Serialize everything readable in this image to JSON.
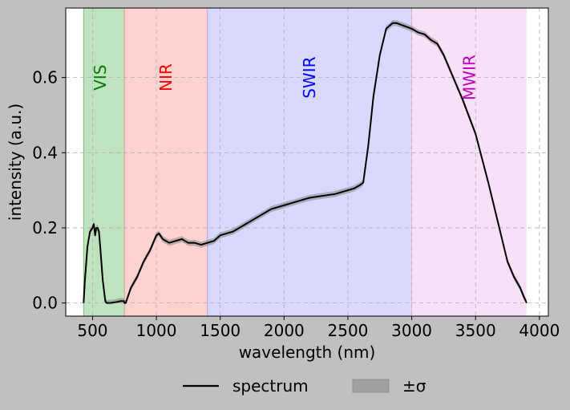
{
  "chart_data": {
    "type": "line",
    "title": "",
    "xlabel": "wavelength (nm)",
    "ylabel": "intensity (a.u.)",
    "xlim": [
      290,
      4070
    ],
    "ylim": [
      -0.035,
      0.785
    ],
    "xticks": [
      500,
      1000,
      1500,
      2000,
      2500,
      3000,
      3500,
      4000
    ],
    "yticks": [
      0.0,
      0.2,
      0.4,
      0.6
    ],
    "xtick_labels": [
      "500",
      "1000",
      "1500",
      "2000",
      "2500",
      "3000",
      "3500",
      "4000"
    ],
    "ytick_labels": [
      "0.0",
      "0.2",
      "0.4",
      "0.6"
    ],
    "grid": true,
    "legend_placement": "bottom-center",
    "bands": [
      {
        "label": "VIS",
        "x0": 430,
        "x1": 750,
        "color": "#2ca02c",
        "text_color": "#008000",
        "label_x": 560
      },
      {
        "label": "NIR",
        "x0": 750,
        "x1": 1400,
        "color": "#ff6b6b",
        "text_color": "#ff0000",
        "label_x": 1075
      },
      {
        "label": "SWIR",
        "x0": 1400,
        "x1": 3000,
        "color": "#8080ff",
        "text_color": "#0000ff",
        "label_x": 2200
      },
      {
        "label": "MWIR",
        "x0": 3000,
        "x1": 3900,
        "color": "#e89ae8",
        "text_color": "#bf00bf",
        "label_x": 3450
      }
    ],
    "band_label_y": 0.6,
    "series": [
      {
        "name": "spectrum",
        "color": "#000000",
        "sigma_label": "±σ",
        "sigma_color": "#808080",
        "x": [
          430,
          440,
          460,
          480,
          500,
          510,
          520,
          530,
          540,
          550,
          560,
          580,
          600,
          610,
          620,
          640,
          680,
          720,
          745,
          750,
          760,
          800,
          850,
          900,
          950,
          1000,
          1020,
          1050,
          1100,
          1150,
          1200,
          1250,
          1300,
          1350,
          1400,
          1450,
          1500,
          1550,
          1600,
          1700,
          1800,
          1900,
          2000,
          2100,
          2200,
          2300,
          2400,
          2500,
          2550,
          2600,
          2620,
          2660,
          2700,
          2750,
          2800,
          2850,
          2880,
          2920,
          2960,
          3000,
          3050,
          3100,
          3150,
          3200,
          3250,
          3300,
          3400,
          3500,
          3600,
          3650,
          3700,
          3750,
          3800,
          3850,
          3880,
          3900
        ],
        "y": [
          0.0,
          0.06,
          0.15,
          0.19,
          0.2,
          0.21,
          0.18,
          0.2,
          0.2,
          0.19,
          0.15,
          0.06,
          0.005,
          0.0,
          0.0,
          0.0,
          0.002,
          0.005,
          0.005,
          0.0,
          0.0,
          0.04,
          0.07,
          0.11,
          0.14,
          0.18,
          0.185,
          0.17,
          0.16,
          0.165,
          0.17,
          0.16,
          0.16,
          0.155,
          0.16,
          0.165,
          0.18,
          0.185,
          0.19,
          0.21,
          0.23,
          0.25,
          0.26,
          0.27,
          0.28,
          0.285,
          0.29,
          0.3,
          0.305,
          0.315,
          0.32,
          0.42,
          0.55,
          0.66,
          0.73,
          0.745,
          0.745,
          0.74,
          0.735,
          0.73,
          0.72,
          0.715,
          0.7,
          0.69,
          0.66,
          0.62,
          0.54,
          0.45,
          0.32,
          0.25,
          0.18,
          0.11,
          0.07,
          0.04,
          0.015,
          0.0
        ],
        "sigma": 0.008
      }
    ]
  }
}
